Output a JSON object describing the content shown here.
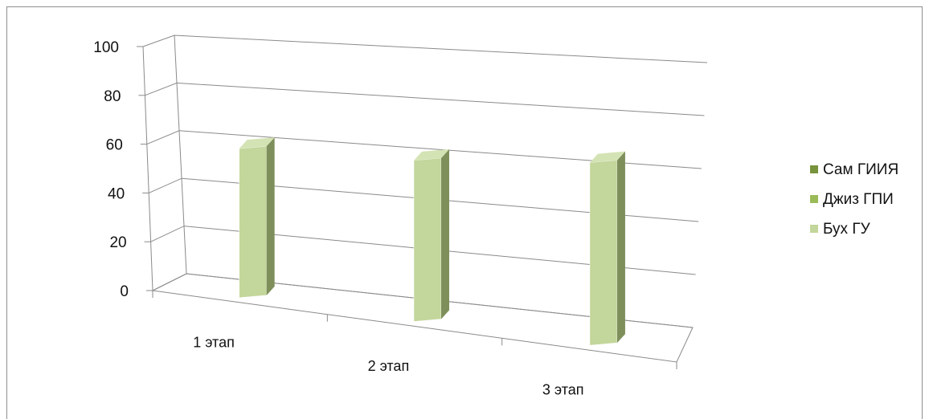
{
  "chart_data": {
    "type": "bar",
    "title": "",
    "xlabel": "",
    "ylabel": "",
    "categories": [
      "1 этап",
      "2 этап",
      "3 этап"
    ],
    "series": [
      {
        "name": "Сам ГИИЯ",
        "color": "#77933c",
        "values": [
          0,
          0,
          0
        ]
      },
      {
        "name": "Джиз ГПИ",
        "color": "#9bbb59",
        "values": [
          0,
          0,
          0
        ]
      },
      {
        "name": "Бух ГУ",
        "color": "#c3d69b",
        "values": [
          62,
          67,
          76
        ]
      }
    ],
    "ylim": [
      0,
      100
    ],
    "yticks": [
      "0",
      "20",
      "40",
      "60",
      "80",
      "100"
    ],
    "grid": true,
    "legend": "right",
    "three_d": true
  }
}
